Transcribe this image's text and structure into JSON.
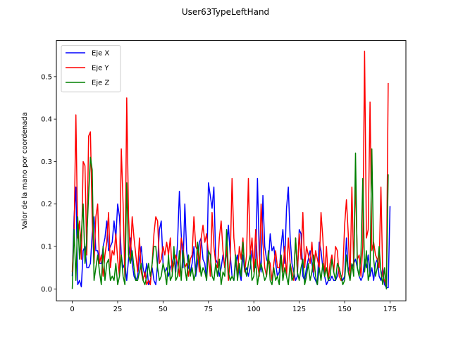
{
  "chart_data": {
    "type": "line",
    "title": "User63TypeLeftHand",
    "xlabel": "",
    "ylabel": "Valor de la mano por coordenada",
    "xlim": [
      -8.75,
      183.75
    ],
    "ylim": [
      -0.028,
      0.585
    ],
    "xticks": [
      0,
      25,
      50,
      75,
      100,
      125,
      150,
      175
    ],
    "yticks": [
      0.0,
      0.1,
      0.2,
      0.3,
      0.4,
      0.5
    ],
    "ytick_labels": [
      "0.0",
      "0.1",
      "0.2",
      "0.3",
      "0.4",
      "0.5"
    ],
    "grid": false,
    "legend_position": "upper-left",
    "series": [
      {
        "name": "Eje X",
        "color": "#0000ff",
        "values": [
          0.03,
          0.17,
          0.24,
          0.01,
          0.02,
          0.005,
          0.09,
          0.1,
          0.05,
          0.05,
          0.06,
          0.13,
          0.17,
          0.09,
          0.09,
          0.06,
          0.06,
          0.1,
          0.12,
          0.16,
          0.09,
          0.1,
          0.11,
          0.16,
          0.12,
          0.2,
          0.17,
          0.08,
          0.05,
          0.06,
          0.02,
          0.07,
          0.12,
          0.06,
          0.03,
          0.02,
          0.03,
          0.07,
          0.1,
          0.05,
          0.03,
          0.06,
          0.01,
          0.02,
          0.05,
          0.02,
          0.01,
          0.06,
          0.14,
          0.16,
          0.06,
          0.04,
          0.05,
          0.03,
          0.05,
          0.06,
          0.08,
          0.04,
          0.11,
          0.23,
          0.13,
          0.05,
          0.2,
          0.09,
          0.05,
          0.04,
          0.06,
          0.1,
          0.03,
          0.06,
          0.11,
          0.12,
          0.07,
          0.06,
          0.02,
          0.25,
          0.22,
          0.19,
          0.24,
          0.07,
          0.06,
          0.03,
          0.05,
          0.08,
          0.05,
          0.09,
          0.15,
          0.08,
          0.03,
          0.02,
          0.06,
          0.08,
          0.04,
          0.02,
          0.08,
          0.04,
          0.05,
          0.03,
          0.05,
          0.09,
          0.06,
          0.05,
          0.26,
          0.08,
          0.04,
          0.22,
          0.1,
          0.07,
          0.06,
          0.13,
          0.09,
          0.1,
          0.06,
          0.03,
          0.04,
          0.1,
          0.14,
          0.06,
          0.19,
          0.24,
          0.12,
          0.06,
          0.04,
          0.02,
          0.03,
          0.14,
          0.13,
          0.03,
          0.02,
          0.05,
          0.07,
          0.09,
          0.06,
          0.03,
          0.02,
          0.01,
          0.11,
          0.09,
          0.05,
          0.03,
          0.01,
          0.02,
          0.02,
          0.03,
          0.02,
          0.02,
          0.03,
          0.05,
          0.03,
          0.02,
          0.03,
          0.12,
          0.04,
          0.06,
          0.05,
          0.06,
          0.07,
          0.05,
          0.03,
          0.02,
          0.03,
          0.07,
          0.05,
          0.08,
          0.03,
          0.05,
          0.02,
          0.06,
          0.07,
          0.03,
          0.02,
          0.05,
          0.01,
          0.003,
          0.003,
          0.195
        ]
      },
      {
        "name": "Eje Y",
        "color": "#ff0000",
        "values": [
          0.04,
          0.13,
          0.41,
          0.12,
          0.16,
          0.07,
          0.3,
          0.29,
          0.08,
          0.36,
          0.37,
          0.16,
          0.06,
          0.17,
          0.2,
          0.06,
          0.08,
          0.03,
          0.08,
          0.11,
          0.18,
          0.05,
          0.09,
          0.08,
          0.13,
          0.07,
          0.03,
          0.33,
          0.2,
          0.02,
          0.45,
          0.17,
          0.07,
          0.17,
          0.12,
          0.08,
          0.04,
          0.12,
          0.04,
          0.02,
          0.04,
          0.01,
          0.02,
          0.01,
          0.06,
          0.13,
          0.17,
          0.16,
          0.06,
          0.07,
          0.1,
          0.08,
          0.11,
          0.08,
          0.12,
          0.04,
          0.06,
          0.08,
          0.06,
          0.03,
          0.12,
          0.1,
          0.05,
          0.06,
          0.03,
          0.07,
          0.08,
          0.17,
          0.1,
          0.09,
          0.04,
          0.12,
          0.15,
          0.11,
          0.13,
          0.08,
          0.03,
          0.18,
          0.1,
          0.06,
          0.05,
          0.12,
          0.16,
          0.09,
          0.05,
          0.1,
          0.02,
          0.07,
          0.26,
          0.12,
          0.07,
          0.03,
          0.1,
          0.07,
          0.12,
          0.04,
          0.08,
          0.26,
          0.08,
          0.12,
          0.04,
          0.14,
          0.06,
          0.03,
          0.2,
          0.11,
          0.05,
          0.03,
          0.07,
          0.06,
          0.02,
          0.06,
          0.09,
          0.05,
          0.05,
          0.08,
          0.04,
          0.1,
          0.03,
          0.12,
          0.06,
          0.04,
          0.02,
          0.12,
          0.04,
          0.13,
          0.07,
          0.18,
          0.05,
          0.1,
          0.08,
          0.06,
          0.11,
          0.04,
          0.09,
          0.07,
          0.05,
          0.18,
          0.12,
          0.03,
          0.1,
          0.02,
          0.06,
          0.08,
          0.04,
          0.1,
          0.09,
          0.03,
          0.02,
          0.04,
          0.15,
          0.21,
          0.13,
          0.02,
          0.24,
          0.05,
          0.26,
          0.07,
          0.08,
          0.03,
          0.1,
          0.56,
          0.12,
          0.14,
          0.44,
          0.09,
          0.11,
          0.08,
          0.07,
          0.05,
          0.24,
          0.03,
          0.02,
          0.005,
          0.485
        ]
      },
      {
        "name": "Eje Z",
        "color": "#008000",
        "values": [
          0.0,
          0.14,
          0.02,
          0.17,
          0.07,
          0.13,
          0.2,
          0.06,
          0.12,
          0.22,
          0.31,
          0.28,
          0.02,
          0.05,
          0.08,
          0.04,
          0.01,
          0.1,
          0.02,
          0.06,
          0.07,
          0.02,
          0.03,
          0.02,
          0.06,
          0.01,
          0.03,
          0.08,
          0.03,
          0.01,
          0.25,
          0.08,
          0.06,
          0.09,
          0.05,
          0.02,
          0.02,
          0.04,
          0.06,
          0.02,
          0.01,
          0.03,
          0.06,
          0.03,
          0.06,
          0.1,
          0.1,
          0.05,
          0.02,
          0.03,
          0.06,
          0.04,
          0.01,
          0.08,
          0.02,
          0.03,
          0.1,
          0.02,
          0.03,
          0.09,
          0.02,
          0.09,
          0.05,
          0.02,
          0.08,
          0.03,
          0.05,
          0.02,
          0.04,
          0.11,
          0.07,
          0.03,
          0.05,
          0.04,
          0.02,
          0.09,
          0.08,
          0.03,
          0.02,
          0.06,
          0.03,
          0.07,
          0.01,
          0.04,
          0.03,
          0.14,
          0.04,
          0.02,
          0.03,
          0.02,
          0.08,
          0.02,
          0.06,
          0.03,
          0.11,
          0.05,
          0.03,
          0.06,
          0.08,
          0.02,
          0.03,
          0.07,
          0.01,
          0.04,
          0.06,
          0.04,
          0.02,
          0.03,
          0.09,
          0.02,
          0.01,
          0.05,
          0.02,
          0.03,
          0.01,
          0.08,
          0.02,
          0.05,
          0.03,
          0.01,
          0.06,
          0.02,
          0.03,
          0.12,
          0.04,
          0.02,
          0.05,
          0.07,
          0.01,
          0.03,
          0.06,
          0.02,
          0.04,
          0.08,
          0.03,
          0.01,
          0.05,
          0.02,
          0.06,
          0.03,
          0.05,
          0.02,
          0.03,
          0.07,
          0.04,
          0.02,
          0.06,
          0.05,
          0.03,
          0.01,
          0.02,
          0.08,
          0.04,
          0.02,
          0.06,
          0.03,
          0.32,
          0.05,
          0.03,
          0.08,
          0.26,
          0.04,
          0.09,
          0.02,
          0.04,
          0.33,
          0.07,
          0.03,
          0.05,
          0.1,
          0.04,
          0.01,
          0.05,
          0.0,
          0.27
        ]
      }
    ]
  }
}
